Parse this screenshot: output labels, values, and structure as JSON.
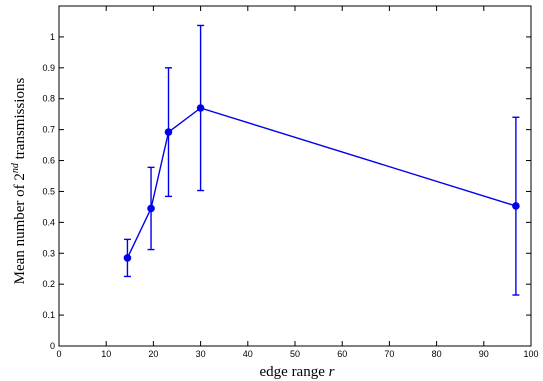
{
  "chart_data": {
    "type": "line",
    "xlabel_text": "edge range ",
    "xlabel_var": "r",
    "ylabel_text": "Mean number of 2",
    "ylabel_sup": "nd",
    "ylabel_tail": " transmissions",
    "xlim": [
      0,
      100
    ],
    "ylim": [
      0,
      1.1
    ],
    "xticks": [
      0,
      10,
      20,
      30,
      40,
      50,
      60,
      70,
      80,
      90,
      100
    ],
    "yticks": [
      0,
      0.1,
      0.2,
      0.3,
      0.4,
      0.5,
      0.6,
      0.7,
      0.8,
      0.9,
      1
    ],
    "grid": false,
    "color": "#0000ee",
    "series": [
      {
        "x": [
          14.5,
          19.5,
          23.2,
          30.0,
          96.8
        ],
        "y": [
          0.285,
          0.445,
          0.692,
          0.77,
          0.453
        ],
        "y_low": [
          0.225,
          0.312,
          0.484,
          0.503,
          0.165
        ],
        "y_high": [
          0.345,
          0.578,
          0.9,
          1.037,
          0.74
        ]
      }
    ]
  }
}
